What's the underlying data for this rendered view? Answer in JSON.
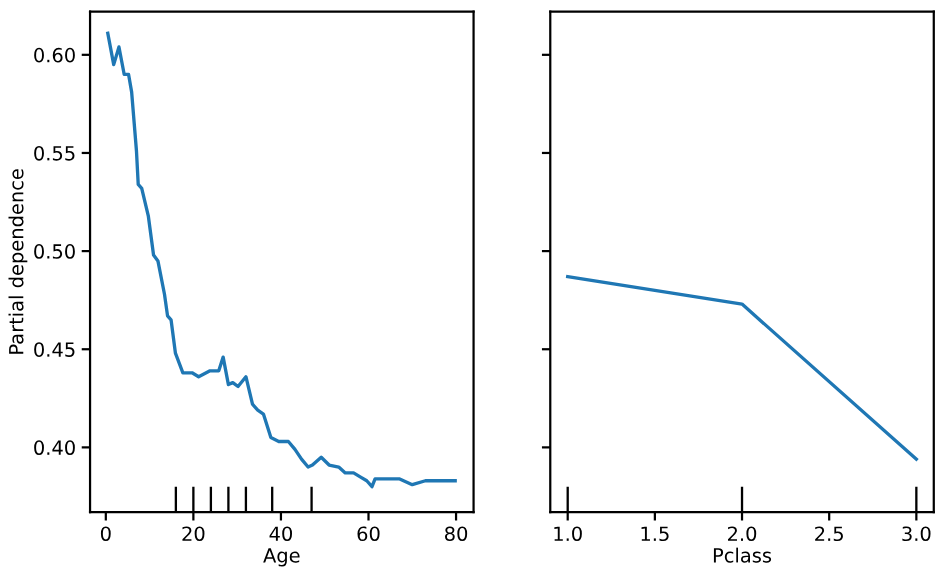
{
  "chart_data": [
    {
      "type": "line",
      "xlabel": "Age",
      "ylabel": "Partial dependence",
      "xlim": [
        -3.6,
        84
      ],
      "xticks": [
        0,
        20,
        40,
        60,
        80
      ],
      "ylim": [
        0.367,
        0.622
      ],
      "yticks": [
        {
          "value": 0.4,
          "label": "0.40"
        },
        {
          "value": 0.45,
          "label": "0.45"
        },
        {
          "value": 0.5,
          "label": "0.50"
        },
        {
          "value": 0.55,
          "label": "0.55"
        },
        {
          "value": 0.6,
          "label": "0.60"
        }
      ],
      "series": [
        {
          "color": "#1f77b4",
          "x": [
            0.45,
            1.8,
            3.0,
            4.2,
            5.2,
            5.9,
            7.0,
            7.4,
            8.2,
            9.7,
            10.9,
            11.9,
            13.4,
            14.1,
            14.9,
            15.9,
            17.6,
            19.7,
            21.2,
            23.8,
            25.8,
            26.8,
            28.0,
            29.0,
            30.2,
            32.0,
            33.5,
            34.7,
            36.0,
            37.7,
            39.5,
            41.7,
            43.2,
            44.7,
            46.2,
            47.2,
            49.2,
            51.0,
            53.2,
            54.7,
            56.6,
            58.1,
            59.6,
            60.8,
            61.5,
            64.8,
            67.0,
            70.0,
            73.0,
            76.0,
            79.8
          ],
          "values": [
            0.611,
            0.595,
            0.604,
            0.59,
            0.59,
            0.581,
            0.551,
            0.534,
            0.532,
            0.518,
            0.498,
            0.495,
            0.478,
            0.467,
            0.465,
            0.448,
            0.438,
            0.438,
            0.436,
            0.439,
            0.439,
            0.446,
            0.432,
            0.433,
            0.431,
            0.436,
            0.422,
            0.419,
            0.417,
            0.405,
            0.403,
            0.403,
            0.399,
            0.394,
            0.39,
            0.391,
            0.395,
            0.391,
            0.39,
            0.387,
            0.387,
            0.385,
            0.383,
            0.38,
            0.384,
            0.384,
            0.384,
            0.381,
            0.383,
            0.383,
            0.383
          ]
        },
        {
          "type": "bar",
          "color": "#000000",
          "x": [
            16,
            20,
            24,
            28,
            32,
            38,
            47
          ],
          "base": [
            0.367,
            0.367,
            0.367,
            0.367,
            0.367,
            0.367,
            0.367
          ],
          "values": [
            0.013,
            0.013,
            0.013,
            0.013,
            0.013,
            0.013,
            0.013
          ]
        }
      ]
    },
    {
      "type": "line",
      "xlabel": "Pclass",
      "xlim": [
        0.9,
        3.1
      ],
      "xticks": [
        {
          "value": 1.0,
          "label": "1.0"
        },
        1.5,
        {
          "value": 2.0,
          "label": "2.0"
        },
        2.5,
        {
          "value": 3.0,
          "label": "3.0"
        }
      ],
      "ylim": [
        0.367,
        0.622
      ],
      "yticks": [
        {
          "value": 0.4,
          "label": null
        },
        {
          "value": 0.45,
          "label": null
        },
        {
          "value": 0.5,
          "label": null
        },
        {
          "value": 0.55,
          "label": null
        },
        {
          "value": 0.6,
          "label": null
        }
      ],
      "tick_labels": "x",
      "series": [
        {
          "color": "#1f77b4",
          "x": [
            1.0,
            2.0,
            3.0
          ],
          "values": [
            0.487,
            0.473,
            0.394
          ]
        },
        {
          "type": "bar",
          "color": "#000000",
          "x": [
            1.0,
            2.0,
            3.0
          ],
          "base": [
            0.367,
            0.367,
            0.367
          ],
          "values": [
            0.013,
            0.013,
            0.013
          ]
        }
      ]
    }
  ]
}
